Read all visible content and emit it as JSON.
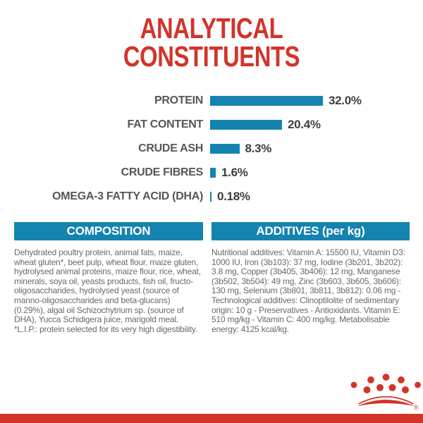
{
  "page": {
    "title_line1": "ANALYTICAL",
    "title_line2": "CONSTITUENTS"
  },
  "chart_data": {
    "type": "bar",
    "orientation": "horizontal",
    "title": "ANALYTICAL CONSTITUENTS",
    "categories": [
      "PROTEIN",
      "FAT CONTENT",
      "CRUDE ASH",
      "CRUDE FIBRES",
      "OMEGA-3 FATTY ACID (DHA)"
    ],
    "values": [
      32.0,
      20.4,
      8.3,
      1.6,
      0.18
    ],
    "value_labels": [
      "32.0%",
      "20.4%",
      "8.3%",
      "1.6%",
      "0.18%"
    ],
    "unit": "%",
    "xlim": [
      0,
      35
    ],
    "bar_color": "#1583b0",
    "grid": "off",
    "legend": "none"
  },
  "sections": {
    "composition": {
      "header": "COMPOSITION",
      "body": "Dehydrated poultry protein, animal fats, maize, wheat gluten*, beet pulp, wheat flour, maize gluten, hydrolysed animal proteins, maize flour, rice, wheat, minerals, soya oil, yeasts products, fish oil, fructo-oligosaccharides, hydrolysed yeast (source of manno-oligosaccharides and beta-glucans) (0.29%), algal oil Schizochytrium sp. (source of DHA), Yucca Schidigera juice, marigold meal. *L.I.P.: protein selected for its very high digestibility."
    },
    "additives": {
      "header": "ADDITIVES (per kg)",
      "body": "Nutritional additives: Vitamin A: 15500 IU, Vitamin D3: 1000 IU, Iron (3b103): 37 mg, Iodine (3b201, 3b202): 3.8 mg, Copper (3b405, 3b406): 12 mg, Manganese (3b502, 3b504): 49 mg, Zinc (3b603, 3b605, 3b606): 130 mg, Selenium (3b801, 3b811, 3b812): 0.06 mg - Technological additives: Clinoptilolite of sedimentary origin: 10 g - Preservatives - Antioxidants. Vitamin E: 510 mg/kg - Vitamin C: 400 mg/kg. Metabolisable energy: 4125 kcal/kg."
    }
  },
  "branding": {
    "logo": "royal-canin-crown",
    "registered_mark": "®",
    "color_red": "#d2342a",
    "color_blue": "#1583b0"
  }
}
